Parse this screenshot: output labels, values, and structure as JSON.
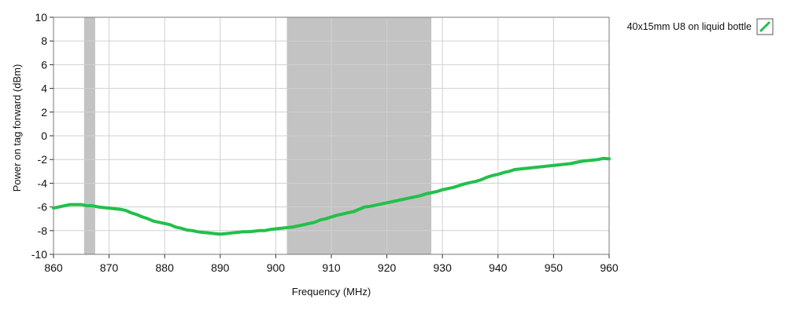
{
  "chart_data": {
    "type": "line",
    "title": "",
    "xlabel": "Frequency (MHz)",
    "ylabel": "Power on tag forward (dBm)",
    "xlim": [
      860,
      960
    ],
    "ylim": [
      -10,
      10
    ],
    "x_ticks": [
      860,
      870,
      880,
      890,
      900,
      910,
      920,
      930,
      940,
      950,
      960
    ],
    "y_ticks": [
      -10,
      -8,
      -6,
      -4,
      -2,
      0,
      2,
      4,
      6,
      8,
      10
    ],
    "grid": true,
    "legend_position": "top-right",
    "shaded_bands": [
      {
        "x_start": 865.5,
        "x_end": 867.5,
        "color": "#c3c3c3"
      },
      {
        "x_start": 902,
        "x_end": 928,
        "color": "#c3c3c3"
      }
    ],
    "series": [
      {
        "name": "40x15mm U8 on liquid bottle",
        "color": "#22c04a",
        "x": [
          860,
          861,
          862,
          863,
          864,
          865,
          866,
          867,
          868,
          869,
          870,
          871,
          872,
          873,
          874,
          875,
          876,
          877,
          878,
          879,
          880,
          881,
          882,
          883,
          884,
          885,
          886,
          887,
          888,
          889,
          890,
          891,
          892,
          893,
          894,
          895,
          896,
          897,
          898,
          899,
          900,
          901,
          902,
          903,
          904,
          905,
          906,
          907,
          908,
          909,
          910,
          911,
          912,
          913,
          914,
          915,
          916,
          917,
          918,
          919,
          920,
          921,
          922,
          923,
          924,
          925,
          926,
          927,
          928,
          929,
          930,
          931,
          932,
          933,
          934,
          935,
          936,
          937,
          938,
          939,
          940,
          941,
          942,
          943,
          944,
          945,
          946,
          947,
          948,
          949,
          950,
          951,
          952,
          953,
          954,
          955,
          956,
          957,
          958,
          959,
          960
        ],
        "y": [
          -6.1,
          -6.0,
          -5.9,
          -5.8,
          -5.8,
          -5.8,
          -5.9,
          -5.9,
          -6.0,
          -6.05,
          -6.1,
          -6.15,
          -6.2,
          -6.3,
          -6.5,
          -6.65,
          -6.85,
          -7.0,
          -7.2,
          -7.3,
          -7.4,
          -7.5,
          -7.7,
          -7.8,
          -7.95,
          -8.0,
          -8.1,
          -8.15,
          -8.2,
          -8.25,
          -8.3,
          -8.25,
          -8.2,
          -8.15,
          -8.1,
          -8.1,
          -8.05,
          -8.0,
          -8.0,
          -7.9,
          -7.85,
          -7.8,
          -7.75,
          -7.7,
          -7.6,
          -7.5,
          -7.4,
          -7.3,
          -7.1,
          -7.0,
          -6.85,
          -6.7,
          -6.6,
          -6.5,
          -6.4,
          -6.2,
          -6.0,
          -5.95,
          -5.85,
          -5.75,
          -5.65,
          -5.55,
          -5.45,
          -5.35,
          -5.25,
          -5.15,
          -5.05,
          -4.9,
          -4.8,
          -4.7,
          -4.55,
          -4.45,
          -4.35,
          -4.2,
          -4.05,
          -3.95,
          -3.85,
          -3.7,
          -3.5,
          -3.35,
          -3.25,
          -3.1,
          -3.0,
          -2.85,
          -2.8,
          -2.75,
          -2.7,
          -2.65,
          -2.6,
          -2.55,
          -2.5,
          -2.45,
          -2.4,
          -2.35,
          -2.25,
          -2.15,
          -2.1,
          -2.05,
          -2.0,
          -1.9,
          -1.95
        ]
      }
    ]
  }
}
